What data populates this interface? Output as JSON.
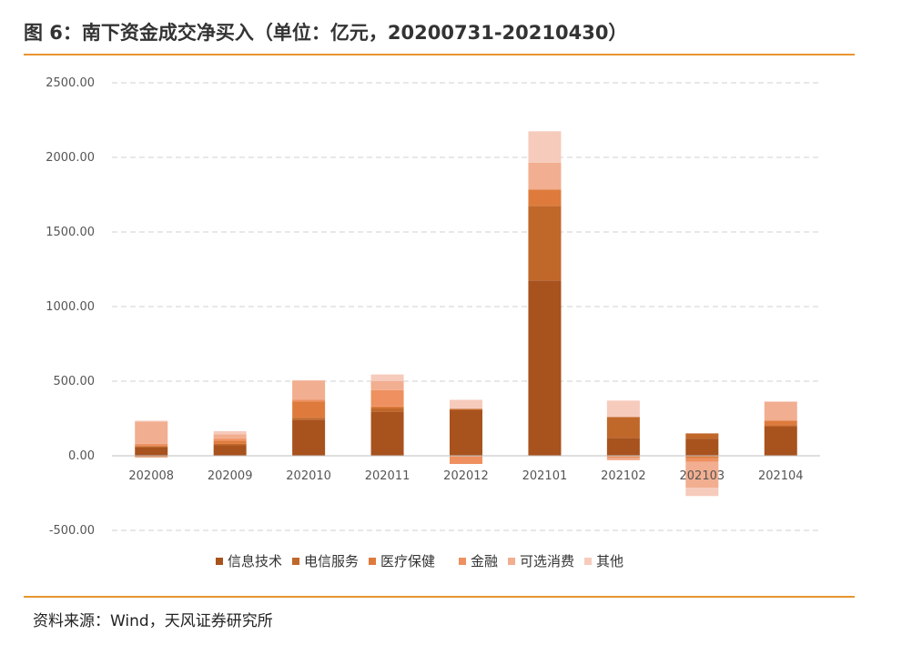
{
  "header": {
    "title": "图 6：南下资金成交净买入（单位：亿元，20200731-20210430）"
  },
  "footer": {
    "source": "资料来源：Wind，天风证券研究所"
  },
  "chart_data": {
    "type": "bar",
    "stacked": true,
    "title": "",
    "xlabel": "",
    "ylabel": "",
    "ylim": [
      -500,
      2500
    ],
    "yticks": [
      -500,
      0,
      500,
      1000,
      1500,
      2000,
      2500
    ],
    "ytick_labels": [
      "-500.00",
      "0.00",
      "500.00",
      "1000.00",
      "1500.00",
      "2000.00",
      "2500.00"
    ],
    "grid": "horizontal-dashed",
    "legend_position": "bottom",
    "categories": [
      "202008",
      "202009",
      "202010",
      "202011",
      "202012",
      "202101",
      "202102",
      "202103",
      "202104"
    ],
    "series": [
      {
        "name": "信息技术",
        "color": "#A8521E",
        "values": [
          55,
          70,
          240,
          295,
          305,
          1175,
          120,
          115,
          195
        ]
      },
      {
        "name": "电信服务",
        "color": "#C0672A",
        "values": [
          10,
          10,
          15,
          25,
          10,
          500,
          140,
          35,
          10
        ]
      },
      {
        "name": "医疗保健",
        "color": "#DE7B3C",
        "values": [
          -10,
          20,
          110,
          10,
          -5,
          110,
          -5,
          -15,
          30
        ]
      },
      {
        "name": "金融",
        "color": "#EE9060",
        "values": [
          15,
          15,
          10,
          110,
          -50,
          0,
          -10,
          -25,
          0
        ]
      },
      {
        "name": "可选消费",
        "color": "#F2AE90",
        "values": [
          150,
          30,
          130,
          60,
          0,
          180,
          -15,
          -175,
          125
        ]
      },
      {
        "name": "其他",
        "color": "#F6CBBC",
        "values": [
          5,
          20,
          0,
          45,
          60,
          210,
          110,
          -55,
          5
        ]
      }
    ]
  }
}
